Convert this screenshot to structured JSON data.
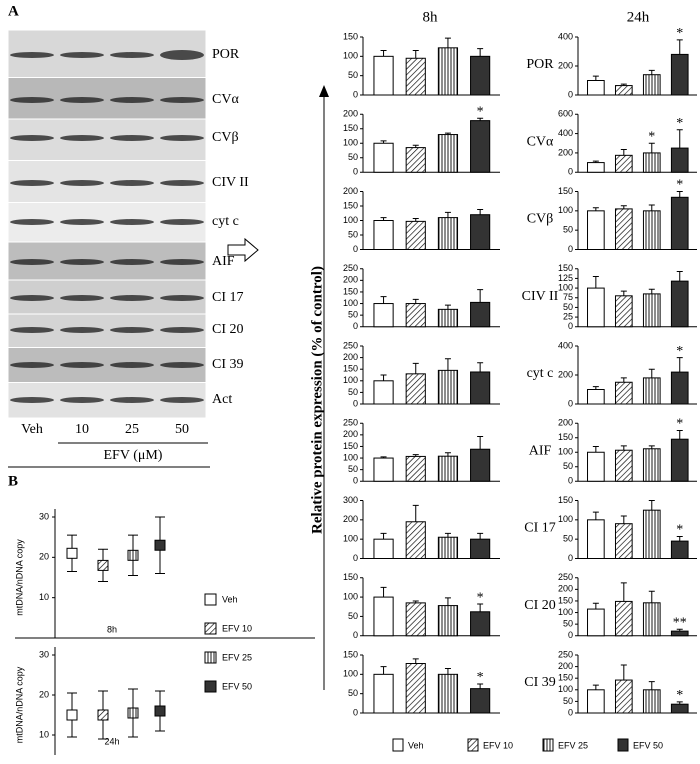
{
  "panel_a": {
    "label": "A",
    "blots": [
      "POR",
      "CVα",
      "CVβ",
      "CIV II",
      "cyt c",
      "AIF",
      "CI 17",
      "CI 20",
      "CI 39",
      "Act"
    ],
    "lanes": [
      "Veh",
      "10",
      "25",
      "50"
    ],
    "treatment": "EFV (μM)"
  },
  "panel_b": {
    "label": "B"
  },
  "column_titles": [
    "8h",
    "24h"
  ],
  "y_axis_label": "Relative protein expression (% of control)",
  "proteins": [
    "POR",
    "CVα",
    "CVβ",
    "CIV II",
    "cyt c",
    "AIF",
    "CI 17",
    "CI 20",
    "CI 39"
  ],
  "legend": [
    {
      "name": "Veh",
      "fill": "open"
    },
    {
      "name": "EFV 10",
      "fill": "diagonal"
    },
    {
      "name": "EFV 25",
      "fill": "vertical"
    },
    {
      "name": "EFV 50",
      "fill": "solid"
    }
  ],
  "chart_data": [
    {
      "type": "bar",
      "ylim": [
        0,
        150
      ],
      "yticks": [
        0,
        50,
        100,
        150
      ],
      "values": [
        100,
        95,
        122,
        100
      ],
      "errors": [
        15,
        20,
        25,
        20
      ],
      "significance": [
        null,
        null,
        null,
        null
      ]
    },
    {
      "type": "bar",
      "ylim": [
        0,
        200
      ],
      "yticks": [
        0,
        50,
        100,
        150,
        200
      ],
      "values": [
        100,
        85,
        130,
        178
      ],
      "errors": [
        8,
        8,
        5,
        8
      ],
      "significance": [
        null,
        null,
        null,
        "*"
      ]
    },
    {
      "type": "bar",
      "ylim": [
        0,
        200
      ],
      "yticks": [
        0,
        50,
        100,
        150,
        200
      ],
      "values": [
        100,
        97,
        110,
        120
      ],
      "errors": [
        10,
        10,
        18,
        18
      ],
      "significance": [
        null,
        null,
        null,
        null
      ]
    },
    {
      "type": "bar",
      "ylim": [
        0,
        250
      ],
      "yticks": [
        0,
        50,
        100,
        150,
        200,
        250
      ],
      "values": [
        100,
        100,
        75,
        105
      ],
      "errors": [
        30,
        18,
        18,
        55
      ],
      "significance": [
        null,
        null,
        null,
        null
      ]
    },
    {
      "type": "bar",
      "ylim": [
        0,
        250
      ],
      "yticks": [
        0,
        50,
        100,
        150,
        200,
        250
      ],
      "values": [
        100,
        130,
        145,
        138
      ],
      "errors": [
        25,
        45,
        50,
        40
      ],
      "significance": [
        null,
        null,
        null,
        null
      ]
    },
    {
      "type": "bar",
      "ylim": [
        0,
        250
      ],
      "yticks": [
        0,
        50,
        100,
        150,
        200,
        250
      ],
      "values": [
        100,
        107,
        108,
        138
      ],
      "errors": [
        5,
        8,
        15,
        55
      ],
      "significance": [
        null,
        null,
        null,
        null
      ]
    },
    {
      "type": "bar",
      "ylim": [
        0,
        300
      ],
      "yticks": [
        0,
        100,
        200,
        300
      ],
      "values": [
        100,
        190,
        110,
        100
      ],
      "errors": [
        30,
        85,
        20,
        30
      ],
      "significance": [
        null,
        null,
        null,
        null
      ]
    },
    {
      "type": "bar",
      "ylim": [
        0,
        150
      ],
      "yticks": [
        0,
        50,
        100,
        150
      ],
      "values": [
        100,
        85,
        78,
        62
      ],
      "errors": [
        25,
        5,
        20,
        20
      ],
      "significance": [
        null,
        null,
        null,
        "*"
      ]
    },
    {
      "type": "bar",
      "ylim": [
        0,
        150
      ],
      "yticks": [
        0,
        50,
        100,
        150
      ],
      "values": [
        100,
        128,
        100,
        63
      ],
      "errors": [
        20,
        12,
        15,
        12
      ],
      "significance": [
        null,
        null,
        null,
        "*"
      ]
    },
    {
      "type": "bar",
      "ylim": [
        0,
        400
      ],
      "yticks": [
        0,
        200,
        400
      ],
      "values": [
        100,
        65,
        140,
        280
      ],
      "errors": [
        30,
        10,
        30,
        100
      ],
      "significance": [
        null,
        null,
        null,
        "*"
      ]
    },
    {
      "type": "bar",
      "ylim": [
        0,
        600
      ],
      "yticks": [
        0,
        200,
        400,
        600
      ],
      "values": [
        100,
        175,
        200,
        250
      ],
      "errors": [
        15,
        60,
        100,
        190
      ],
      "significance": [
        null,
        null,
        "*",
        "*"
      ]
    },
    {
      "type": "bar",
      "ylim": [
        0,
        150
      ],
      "yticks": [
        0,
        50,
        100,
        150
      ],
      "values": [
        100,
        105,
        100,
        135
      ],
      "errors": [
        8,
        8,
        15,
        15
      ],
      "significance": [
        null,
        null,
        null,
        "*"
      ]
    },
    {
      "type": "bar",
      "ylim": [
        0,
        150
      ],
      "yticks": [
        0,
        25,
        50,
        75,
        100,
        125,
        150
      ],
      "values": [
        100,
        80,
        85,
        118
      ],
      "errors": [
        30,
        12,
        12,
        25
      ],
      "significance": [
        null,
        null,
        null,
        null
      ]
    },
    {
      "type": "bar",
      "ylim": [
        0,
        400
      ],
      "yticks": [
        0,
        200,
        400
      ],
      "values": [
        100,
        150,
        180,
        220
      ],
      "errors": [
        20,
        30,
        60,
        100
      ],
      "significance": [
        null,
        null,
        null,
        "*"
      ]
    },
    {
      "type": "bar",
      "ylim": [
        0,
        200
      ],
      "yticks": [
        0,
        50,
        100,
        150,
        200
      ],
      "values": [
        100,
        107,
        112,
        145
      ],
      "errors": [
        20,
        15,
        10,
        30
      ],
      "significance": [
        null,
        null,
        null,
        "*"
      ]
    },
    {
      "type": "bar",
      "ylim": [
        0,
        150
      ],
      "yticks": [
        0,
        50,
        100,
        150
      ],
      "values": [
        100,
        90,
        125,
        45
      ],
      "errors": [
        20,
        20,
        25,
        12
      ],
      "significance": [
        null,
        null,
        null,
        "*"
      ]
    },
    {
      "type": "bar",
      "ylim": [
        0,
        250
      ],
      "yticks": [
        0,
        50,
        100,
        150,
        200,
        250
      ],
      "values": [
        115,
        148,
        142,
        20
      ],
      "errors": [
        25,
        80,
        50,
        8
      ],
      "significance": [
        null,
        null,
        null,
        "**"
      ]
    },
    {
      "type": "bar",
      "ylim": [
        0,
        250
      ],
      "yticks": [
        0,
        50,
        100,
        150,
        200,
        250
      ],
      "values": [
        100,
        142,
        100,
        38
      ],
      "errors": [
        20,
        65,
        35,
        10
      ],
      "significance": [
        null,
        null,
        null,
        "*"
      ]
    },
    {
      "type": "dot",
      "x_label": "8h",
      "y_label": "mtDNA/nDNA copy",
      "ylim": [
        0,
        30
      ],
      "yticks": [
        10,
        20,
        30
      ],
      "values": [
        21,
        18,
        20.5,
        23
      ],
      "errors": [
        4.5,
        4,
        5,
        7
      ]
    },
    {
      "type": "dot",
      "x_label": "24h",
      "y_label": "mtDNA/nDNA copy",
      "ylim": [
        5,
        30
      ],
      "yticks": [
        10,
        20,
        30
      ],
      "values": [
        15,
        15,
        15.5,
        16
      ],
      "errors": [
        5.5,
        6,
        6,
        5
      ]
    }
  ]
}
